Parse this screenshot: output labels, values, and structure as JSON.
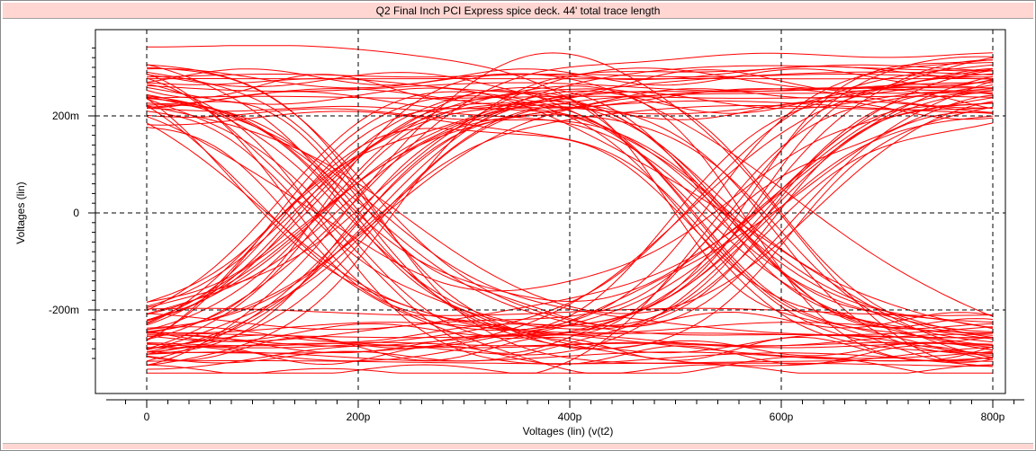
{
  "window": {
    "title": "Q2 Final Inch PCI Express spice deck. 44' total trace length"
  },
  "chart_data": {
    "type": "line",
    "plot": "eye-diagram",
    "title": "Q2 Final Inch PCI Express spice deck. 44' total trace length",
    "xlabel": "Voltages (lin) (v(t2)",
    "ylabel": "Voltages (lin)",
    "xlim": [
      0,
      800
    ],
    "ylim": [
      -300,
      300
    ],
    "x_ticks": [
      {
        "value": 0,
        "label": "0"
      },
      {
        "value": 200,
        "label": "200p"
      },
      {
        "value": 400,
        "label": "400p"
      },
      {
        "value": 600,
        "label": "600p"
      },
      {
        "value": 800,
        "label": "800p"
      }
    ],
    "y_ticks": [
      {
        "value": 200,
        "label": "200m"
      },
      {
        "value": 0,
        "label": "0"
      },
      {
        "value": -200,
        "label": "-200m"
      }
    ],
    "grid": true,
    "grid_style": "dashed",
    "trace_color": "#ff0000",
    "eye": {
      "unit_interval_ps": 400,
      "crossings_ps": [
        170,
        570
      ],
      "high_level_mV": 280,
      "low_level_mV": -280,
      "eye_opening_mV": [
        -120,
        120
      ],
      "trace_count": 90
    }
  }
}
